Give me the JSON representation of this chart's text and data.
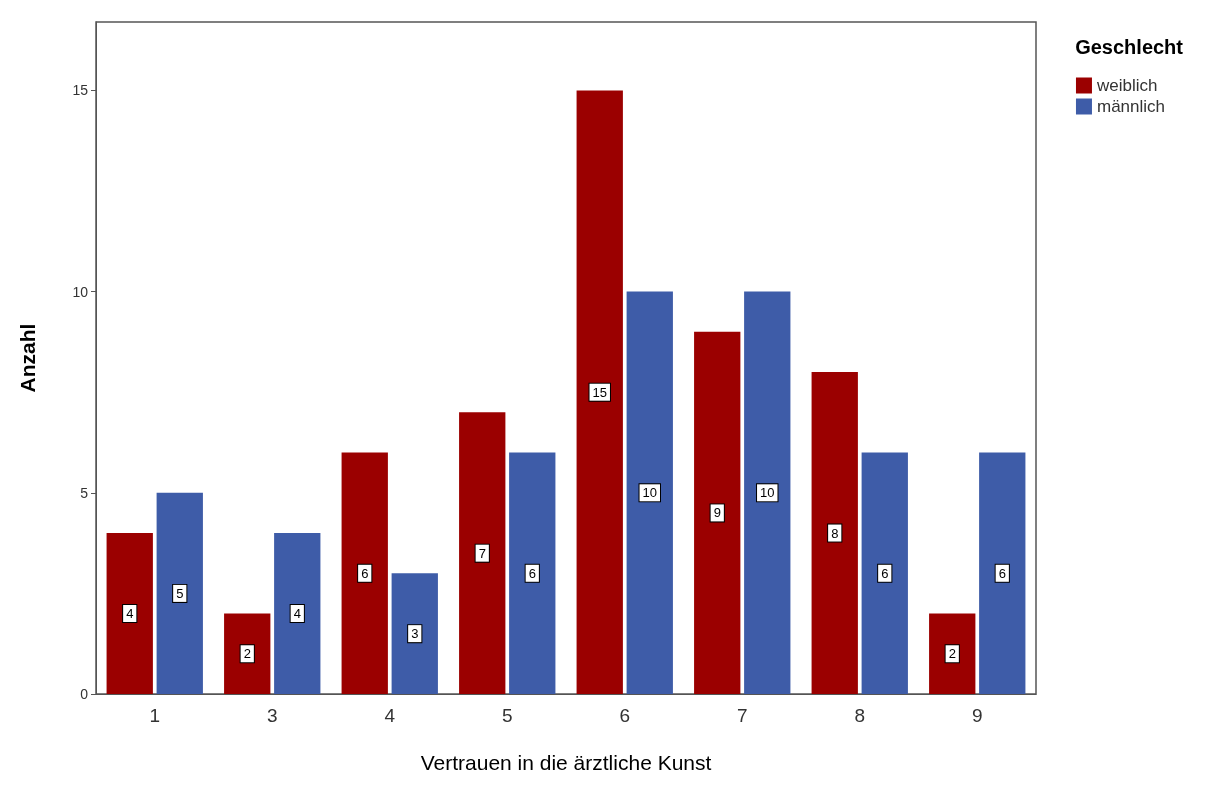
{
  "chart_data": {
    "type": "bar",
    "xlabel": "Vertrauen in die ärztliche Kunst",
    "ylabel": "Anzahl",
    "legend_title": "Geschlecht",
    "legend": "top right",
    "categories": [
      "1",
      "3",
      "4",
      "5",
      "6",
      "7",
      "8",
      "9"
    ],
    "series": [
      {
        "name": "weiblich",
        "color": "#9b0000",
        "values": [
          4,
          2,
          6,
          7,
          15,
          9,
          8,
          2
        ]
      },
      {
        "name": "männlich",
        "color": "#3e5ca8",
        "values": [
          5,
          4,
          3,
          6,
          10,
          10,
          6,
          6
        ]
      }
    ],
    "ylim": [
      0,
      16.7
    ],
    "yticks": [
      0,
      5,
      10,
      15
    ],
    "data_labels": true
  }
}
